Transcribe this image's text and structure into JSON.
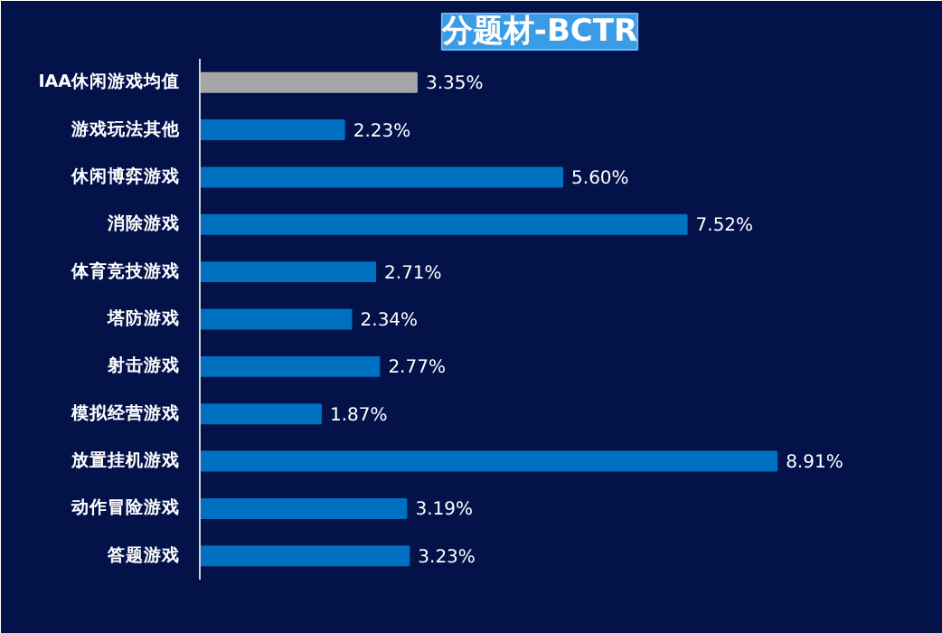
{
  "chart_data": {
    "type": "bar",
    "orientation": "horizontal",
    "title": "分题材-BCTR",
    "categories": [
      "IAA休闲游戏均值",
      "游戏玩法其他",
      "休闲博弈游戏",
      "消除游戏",
      "体育竞技游戏",
      "塔防游戏",
      "射击游戏",
      "模拟经营游戏",
      "放置挂机游戏",
      "动作冒险游戏",
      "答题游戏"
    ],
    "values": [
      3.35,
      2.23,
      5.6,
      7.52,
      2.71,
      2.34,
      2.77,
      1.87,
      8.91,
      3.19,
      3.23
    ],
    "value_labels": [
      "3.35%",
      "2.23%",
      "5.60%",
      "7.52%",
      "2.71%",
      "2.34%",
      "2.77%",
      "1.87%",
      "8.91%",
      "3.19%",
      "3.23%"
    ],
    "colors": [
      "#a6a6a6",
      "#0070c0",
      "#0070c0",
      "#0070c0",
      "#0070c0",
      "#0070c0",
      "#0070c0",
      "#0070c0",
      "#0070c0",
      "#0070c0",
      "#0070c0"
    ],
    "xlim": [
      0,
      10.5
    ],
    "tick_labels": "y",
    "grid": false
  }
}
